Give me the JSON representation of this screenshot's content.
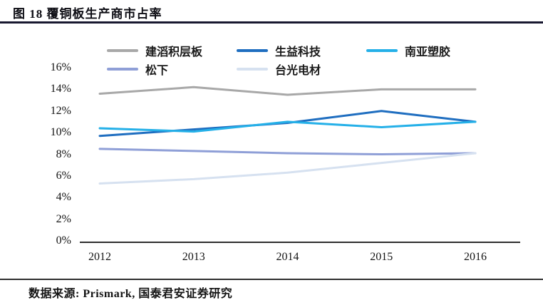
{
  "figure": {
    "title": "图 18 覆铜板生产商市占率",
    "source": "数据来源: Prismark, 国泰君安证券研究"
  },
  "colors": {
    "title_rule": "#181830",
    "bottom_rule": "#2e2e2e",
    "axis": "#2e2e2e",
    "text": "#141414"
  },
  "chart_data": {
    "type": "line",
    "title": "覆铜板生产商市占率",
    "categories": [
      "2012",
      "2013",
      "2014",
      "2015",
      "2016"
    ],
    "series": [
      {
        "name": "建滔积层板",
        "color": "#a8a8a8",
        "values": [
          13.6,
          14.2,
          13.5,
          14.0,
          14.0
        ]
      },
      {
        "name": "生益科技",
        "color": "#1f6ec0",
        "values": [
          9.7,
          10.3,
          10.9,
          12.0,
          11.0
        ]
      },
      {
        "name": "南亚塑胶",
        "color": "#25b0e8",
        "values": [
          10.4,
          10.1,
          11.0,
          10.5,
          11.0
        ]
      },
      {
        "name": "松下",
        "color": "#8f9fd7",
        "values": [
          8.5,
          8.3,
          8.1,
          8.0,
          8.1
        ]
      },
      {
        "name": "台光电材",
        "color": "#d6e1f0",
        "values": [
          5.3,
          5.7,
          6.3,
          7.2,
          8.1
        ]
      }
    ],
    "ylim": [
      0,
      16
    ],
    "yticks": [
      0,
      2,
      4,
      6,
      8,
      10,
      12,
      14,
      16
    ],
    "ytick_labels": [
      "0%",
      "2%",
      "4%",
      "6%",
      "8%",
      "10%",
      "12%",
      "14%",
      "16%"
    ],
    "xlabel": "",
    "ylabel": "",
    "grid": false,
    "legend_position": "top"
  }
}
